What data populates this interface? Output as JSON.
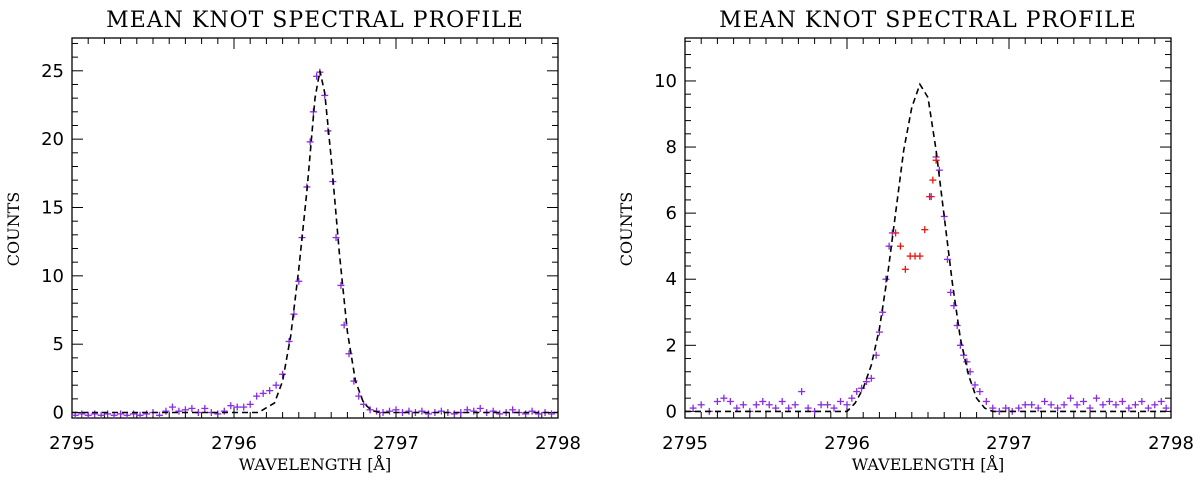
{
  "colors": {
    "data_points": "#8a2be2",
    "highlight_points": "#e8150f",
    "fit_line": "#000000",
    "axes": "#000000"
  },
  "chart_data": [
    {
      "type": "scatter",
      "title": "MEAN KNOT SPECTRAL PROFILE",
      "xlabel": "WAVELENGTH [Å]",
      "ylabel": "COUNTS",
      "xlim": [
        2795,
        2798
      ],
      "ylim": [
        -0.4,
        27.4
      ],
      "xticks": [
        2795,
        2796,
        2797,
        2798
      ],
      "xtick_labels": [
        "2795",
        "2796",
        "2797",
        "2798"
      ],
      "yticks": [
        0,
        5,
        10,
        15,
        20,
        25
      ],
      "ytick_labels": [
        "0",
        "5",
        "10",
        "15",
        "20",
        "25"
      ],
      "grid": false,
      "series": [
        {
          "kind": "points",
          "marker": "plus",
          "color": "#8a2be2",
          "points": [
            [
              2795.02,
              -0.2
            ],
            [
              2795.06,
              -0.1
            ],
            [
              2795.1,
              -0.2
            ],
            [
              2795.14,
              -0.1
            ],
            [
              2795.18,
              -0.2
            ],
            [
              2795.22,
              -0.1
            ],
            [
              2795.26,
              -0.2
            ],
            [
              2795.3,
              -0.1
            ],
            [
              2795.34,
              -0.2
            ],
            [
              2795.38,
              -0.1
            ],
            [
              2795.42,
              -0.2
            ],
            [
              2795.46,
              -0.1
            ],
            [
              2795.5,
              0.0
            ],
            [
              2795.54,
              -0.2
            ],
            [
              2795.58,
              0.1
            ],
            [
              2795.62,
              0.4
            ],
            [
              2795.66,
              0.1
            ],
            [
              2795.7,
              0.2
            ],
            [
              2795.74,
              0.3
            ],
            [
              2795.78,
              0.0
            ],
            [
              2795.82,
              0.3
            ],
            [
              2795.86,
              0.0
            ],
            [
              2795.9,
              -0.1
            ],
            [
              2795.94,
              0.1
            ],
            [
              2795.98,
              0.5
            ],
            [
              2796.02,
              0.4
            ],
            [
              2796.06,
              0.4
            ],
            [
              2796.1,
              0.6
            ],
            [
              2796.14,
              1.2
            ],
            [
              2796.18,
              1.4
            ],
            [
              2796.22,
              1.6
            ],
            [
              2796.26,
              2.0
            ],
            [
              2796.3,
              2.8
            ],
            [
              2796.34,
              5.2
            ],
            [
              2796.37,
              7.2
            ],
            [
              2796.4,
              9.6
            ],
            [
              2796.42,
              12.8
            ],
            [
              2796.45,
              16.5
            ],
            [
              2796.47,
              19.8
            ],
            [
              2796.49,
              22.0
            ],
            [
              2796.51,
              24.6
            ],
            [
              2796.53,
              24.9
            ],
            [
              2796.56,
              23.2
            ],
            [
              2796.58,
              20.6
            ],
            [
              2796.61,
              16.9
            ],
            [
              2796.63,
              12.8
            ],
            [
              2796.66,
              9.3
            ],
            [
              2796.68,
              6.4
            ],
            [
              2796.71,
              4.3
            ],
            [
              2796.74,
              2.3
            ],
            [
              2796.77,
              1.2
            ],
            [
              2796.8,
              0.6
            ],
            [
              2796.84,
              0.2
            ],
            [
              2796.88,
              0.1
            ],
            [
              2796.92,
              0.0
            ],
            [
              2796.96,
              0.1
            ],
            [
              2797.0,
              0.2
            ],
            [
              2797.04,
              0.0
            ],
            [
              2797.08,
              0.1
            ],
            [
              2797.12,
              0.0
            ],
            [
              2797.16,
              0.1
            ],
            [
              2797.2,
              -0.1
            ],
            [
              2797.24,
              0.0
            ],
            [
              2797.28,
              0.1
            ],
            [
              2797.32,
              0.0
            ],
            [
              2797.36,
              -0.1
            ],
            [
              2797.4,
              0.0
            ],
            [
              2797.44,
              0.2
            ],
            [
              2797.48,
              0.1
            ],
            [
              2797.52,
              0.3
            ],
            [
              2797.56,
              0.0
            ],
            [
              2797.6,
              0.1
            ],
            [
              2797.64,
              -0.1
            ],
            [
              2797.68,
              0.0
            ],
            [
              2797.72,
              0.2
            ],
            [
              2797.76,
              0.0
            ],
            [
              2797.8,
              -0.1
            ],
            [
              2797.84,
              0.1
            ],
            [
              2797.88,
              -0.1
            ],
            [
              2797.92,
              0.0
            ],
            [
              2797.96,
              -0.1
            ]
          ]
        },
        {
          "kind": "line",
          "style": "dashed",
          "color": "#000000",
          "points": [
            [
              2795.0,
              0.0
            ],
            [
              2796.15,
              0.0
            ],
            [
              2796.25,
              0.7
            ],
            [
              2796.3,
              2.3
            ],
            [
              2796.35,
              5.6
            ],
            [
              2796.4,
              10.5
            ],
            [
              2796.45,
              16.2
            ],
            [
              2796.5,
              23.0
            ],
            [
              2796.53,
              25.0
            ],
            [
              2796.56,
              23.4
            ],
            [
              2796.6,
              18.6
            ],
            [
              2796.65,
              11.7
            ],
            [
              2796.7,
              5.9
            ],
            [
              2796.75,
              2.3
            ],
            [
              2796.8,
              0.7
            ],
            [
              2796.85,
              0.15
            ],
            [
              2796.9,
              0.0
            ],
            [
              2798.0,
              0.0
            ]
          ]
        }
      ]
    },
    {
      "type": "scatter",
      "title": "MEAN KNOT SPECTRAL PROFILE",
      "xlabel": "WAVELENGTH [Å]",
      "ylabel": "COUNTS",
      "xlim": [
        2795,
        2798
      ],
      "ylim": [
        -0.2,
        11.3
      ],
      "xticks": [
        2795,
        2796,
        2797,
        2798
      ],
      "xtick_labels": [
        "2795",
        "2796",
        "2797",
        "2798"
      ],
      "yticks": [
        0,
        2,
        4,
        6,
        8,
        10
      ],
      "ytick_labels": [
        "0",
        "2",
        "4",
        "6",
        "8",
        "10"
      ],
      "grid": false,
      "series": [
        {
          "kind": "points",
          "marker": "plus",
          "color": "#8a2be2",
          "points": [
            [
              2795.05,
              0.1
            ],
            [
              2795.1,
              0.2
            ],
            [
              2795.15,
              0.0
            ],
            [
              2795.2,
              0.3
            ],
            [
              2795.24,
              0.4
            ],
            [
              2795.28,
              0.3
            ],
            [
              2795.32,
              0.1
            ],
            [
              2795.36,
              0.2
            ],
            [
              2795.4,
              0.0
            ],
            [
              2795.44,
              0.2
            ],
            [
              2795.48,
              0.3
            ],
            [
              2795.52,
              0.2
            ],
            [
              2795.56,
              0.1
            ],
            [
              2795.6,
              0.3
            ],
            [
              2795.64,
              0.1
            ],
            [
              2795.68,
              0.2
            ],
            [
              2795.72,
              0.6
            ],
            [
              2795.76,
              0.1
            ],
            [
              2795.8,
              0.0
            ],
            [
              2795.84,
              0.2
            ],
            [
              2795.88,
              0.2
            ],
            [
              2795.92,
              0.1
            ],
            [
              2795.96,
              0.3
            ],
            [
              2796.0,
              0.2
            ],
            [
              2796.03,
              0.4
            ],
            [
              2796.06,
              0.6
            ],
            [
              2796.09,
              0.7
            ],
            [
              2796.12,
              0.9
            ],
            [
              2796.15,
              1.0
            ],
            [
              2796.18,
              1.7
            ],
            [
              2796.2,
              2.4
            ],
            [
              2796.22,
              3.0
            ],
            [
              2796.24,
              4.0
            ],
            [
              2796.26,
              5.0
            ],
            [
              2796.28,
              5.4
            ],
            [
              2796.52,
              6.5
            ],
            [
              2796.55,
              7.7
            ],
            [
              2796.57,
              7.3
            ],
            [
              2796.6,
              5.9
            ],
            [
              2796.62,
              4.6
            ],
            [
              2796.64,
              3.6
            ],
            [
              2796.66,
              3.2
            ],
            [
              2796.68,
              2.6
            ],
            [
              2796.7,
              2.0
            ],
            [
              2796.72,
              1.7
            ],
            [
              2796.74,
              1.5
            ],
            [
              2796.76,
              1.2
            ],
            [
              2796.79,
              0.8
            ],
            [
              2796.82,
              0.6
            ],
            [
              2796.86,
              0.3
            ],
            [
              2796.9,
              0.1
            ],
            [
              2796.94,
              0.0
            ],
            [
              2796.98,
              0.1
            ],
            [
              2797.02,
              0.0
            ],
            [
              2797.06,
              0.1
            ],
            [
              2797.1,
              0.2
            ],
            [
              2797.14,
              0.2
            ],
            [
              2797.18,
              0.1
            ],
            [
              2797.22,
              0.3
            ],
            [
              2797.26,
              0.2
            ],
            [
              2797.3,
              0.1
            ],
            [
              2797.34,
              0.2
            ],
            [
              2797.38,
              0.4
            ],
            [
              2797.42,
              0.2
            ],
            [
              2797.46,
              0.3
            ],
            [
              2797.5,
              0.1
            ],
            [
              2797.54,
              0.4
            ],
            [
              2797.58,
              0.2
            ],
            [
              2797.62,
              0.3
            ],
            [
              2797.66,
              0.2
            ],
            [
              2797.7,
              0.3
            ],
            [
              2797.74,
              0.1
            ],
            [
              2797.78,
              0.2
            ],
            [
              2797.82,
              0.3
            ],
            [
              2797.86,
              0.1
            ],
            [
              2797.9,
              0.2
            ],
            [
              2797.94,
              0.3
            ],
            [
              2797.97,
              0.1
            ]
          ]
        },
        {
          "kind": "points",
          "marker": "plus",
          "color": "#e8150f",
          "points": [
            [
              2796.3,
              5.4
            ],
            [
              2796.33,
              5.0
            ],
            [
              2796.36,
              4.3
            ],
            [
              2796.39,
              4.7
            ],
            [
              2796.42,
              4.7
            ],
            [
              2796.45,
              4.7
            ],
            [
              2796.48,
              5.5
            ],
            [
              2796.51,
              6.5
            ],
            [
              2796.53,
              7.0
            ],
            [
              2796.55,
              7.6
            ]
          ]
        },
        {
          "kind": "line",
          "style": "dashed",
          "color": "#000000",
          "points": [
            [
              2795.0,
              0.0
            ],
            [
              2796.0,
              0.0
            ],
            [
              2796.05,
              0.25
            ],
            [
              2796.1,
              0.7
            ],
            [
              2796.15,
              1.4
            ],
            [
              2796.2,
              2.5
            ],
            [
              2796.25,
              4.1
            ],
            [
              2796.3,
              6.0
            ],
            [
              2796.35,
              7.9
            ],
            [
              2796.4,
              9.2
            ],
            [
              2796.45,
              9.9
            ],
            [
              2796.5,
              9.5
            ],
            [
              2796.55,
              7.9
            ],
            [
              2796.6,
              5.9
            ],
            [
              2796.65,
              3.9
            ],
            [
              2796.7,
              2.2
            ],
            [
              2796.75,
              1.1
            ],
            [
              2796.8,
              0.4
            ],
            [
              2796.85,
              0.1
            ],
            [
              2796.9,
              0.0
            ],
            [
              2798.0,
              0.0
            ]
          ]
        }
      ]
    }
  ]
}
